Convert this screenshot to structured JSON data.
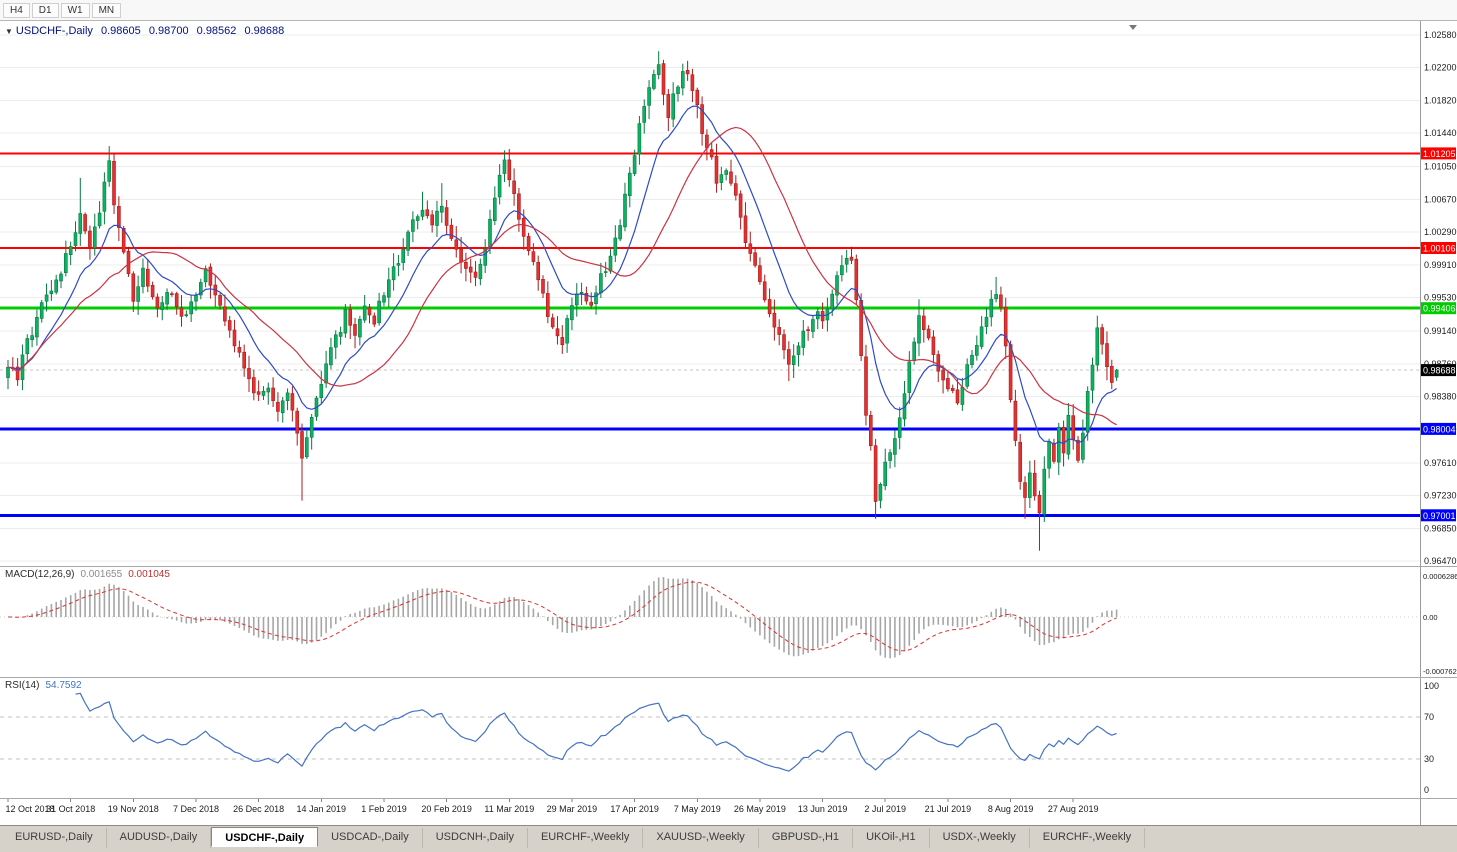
{
  "toolbar": {
    "timeframes": [
      "H4",
      "D1",
      "W1",
      "MN"
    ]
  },
  "chart": {
    "title": {
      "marker": "▼",
      "symbol": "USDCHF-,Daily",
      "open": "0.98605",
      "high": "0.98700",
      "low": "0.98562",
      "close": "0.98688"
    }
  },
  "chart_data": {
    "type": "candlestick",
    "symbol": "USDCHF-",
    "period": "Daily",
    "y_axis_ticks": [
      "1.02580",
      "1.02200",
      "1.01820",
      "1.01440",
      "1.01050",
      "1.00670",
      "1.00290",
      "0.99910",
      "0.99530",
      "0.99140",
      "0.98760",
      "0.98380",
      "0.98000",
      "0.97610",
      "0.97230",
      "0.96850",
      "0.96470"
    ],
    "y_range": [
      0.9647,
      1.0258
    ],
    "x_axis_dates": [
      "12 Oct 2018",
      "31 Oct 2018",
      "19 Nov 2018",
      "7 Dec 2018",
      "26 Dec 2018",
      "14 Jan 2019",
      "1 Feb 2019",
      "20 Feb 2019",
      "11 Mar 2019",
      "29 Mar 2019",
      "17 Apr 2019",
      "7 May 2019",
      "26 May 2019",
      "13 Jun 2019",
      "2 Jul 2019",
      "21 Jul 2019",
      "8 Aug 2019",
      "27 Aug 2019"
    ],
    "candles_per_date_label": 13,
    "num_candles": 231,
    "price_path_waypoints": [
      [
        0,
        0.9872
      ],
      [
        2,
        0.9858
      ],
      [
        4,
        0.99
      ],
      [
        6,
        0.9928
      ],
      [
        8,
        0.9952
      ],
      [
        10,
        0.9972
      ],
      [
        13,
        1.001
      ],
      [
        15,
        1.0048
      ],
      [
        17,
        1.0008
      ],
      [
        19,
        1.0052
      ],
      [
        21,
        1.0108
      ],
      [
        22,
        1.0058
      ],
      [
        24,
        1.0012
      ],
      [
        26,
        0.9948
      ],
      [
        28,
        0.9986
      ],
      [
        31,
        0.9936
      ],
      [
        33,
        0.9962
      ],
      [
        36,
        0.9934
      ],
      [
        39,
        0.9948
      ],
      [
        41,
        0.9982
      ],
      [
        44,
        0.995
      ],
      [
        46,
        0.9912
      ],
      [
        48,
        0.9888
      ],
      [
        50,
        0.9856
      ],
      [
        52,
        0.9836
      ],
      [
        54,
        0.9848
      ],
      [
        56,
        0.9824
      ],
      [
        58,
        0.9836
      ],
      [
        60,
        0.9796
      ],
      [
        61,
        0.9762
      ],
      [
        63,
        0.982
      ],
      [
        65,
        0.9858
      ],
      [
        67,
        0.9896
      ],
      [
        70,
        0.9932
      ],
      [
        72,
        0.9912
      ],
      [
        74,
        0.9944
      ],
      [
        76,
        0.9926
      ],
      [
        78,
        0.9958
      ],
      [
        80,
        0.9988
      ],
      [
        82,
        1.0012
      ],
      [
        84,
        1.0036
      ],
      [
        86,
        1.0056
      ],
      [
        88,
        1.0042
      ],
      [
        90,
        1.0062
      ],
      [
        91,
        1.0032
      ],
      [
        93,
        1.0002
      ],
      [
        95,
        0.9986
      ],
      [
        97,
        0.9976
      ],
      [
        99,
        1.0012
      ],
      [
        101,
        1.0066
      ],
      [
        103,
        1.0116
      ],
      [
        105,
        1.0072
      ],
      [
        107,
        1.0022
      ],
      [
        109,
        0.9992
      ],
      [
        111,
        0.9952
      ],
      [
        113,
        0.9918
      ],
      [
        115,
        0.99
      ],
      [
        117,
        0.9946
      ],
      [
        119,
        0.9962
      ],
      [
        121,
        0.994
      ],
      [
        123,
        0.9976
      ],
      [
        125,
        1.0004
      ],
      [
        127,
        1.0042
      ],
      [
        129,
        1.0095
      ],
      [
        131,
        1.015
      ],
      [
        133,
        1.02
      ],
      [
        135,
        1.0228
      ],
      [
        136,
        1.019
      ],
      [
        137,
        1.016
      ],
      [
        138,
        1.019
      ],
      [
        140,
        1.0215
      ],
      [
        141,
        1.022
      ],
      [
        142,
        1.0195
      ],
      [
        143,
        1.017
      ],
      [
        145,
        1.0126
      ],
      [
        147,
        1.0092
      ],
      [
        149,
        1.0106
      ],
      [
        151,
        1.0066
      ],
      [
        153,
        1.0022
      ],
      [
        155,
        0.9992
      ],
      [
        156,
        0.9964
      ],
      [
        158,
        0.9936
      ],
      [
        160,
        0.9906
      ],
      [
        162,
        0.9882
      ],
      [
        164,
        0.9896
      ],
      [
        166,
        0.9922
      ],
      [
        168,
        0.9936
      ],
      [
        169,
        0.9926
      ],
      [
        171,
        0.9962
      ],
      [
        173,
        0.9986
      ],
      [
        175,
        1.0002
      ],
      [
        176,
        0.9952
      ],
      [
        177,
        0.9892
      ],
      [
        178,
        0.9822
      ],
      [
        179,
        0.9778
      ],
      [
        180,
        0.9716
      ],
      [
        181,
        0.9742
      ],
      [
        183,
        0.9772
      ],
      [
        185,
        0.9816
      ],
      [
        187,
        0.9872
      ],
      [
        189,
        0.9926
      ],
      [
        191,
        0.9902
      ],
      [
        193,
        0.9872
      ],
      [
        195,
        0.9852
      ],
      [
        197,
        0.9832
      ],
      [
        199,
        0.9872
      ],
      [
        201,
        0.9902
      ],
      [
        203,
        0.9936
      ],
      [
        205,
        0.9962
      ],
      [
        206,
        0.9942
      ],
      [
        207,
        0.9892
      ],
      [
        208,
        0.9836
      ],
      [
        209,
        0.9792
      ],
      [
        210,
        0.9742
      ],
      [
        211,
        0.9722
      ],
      [
        212,
        0.9746
      ],
      [
        213,
        0.9726
      ],
      [
        214,
        0.9702
      ],
      [
        215,
        0.9756
      ],
      [
        216,
        0.9782
      ],
      [
        217,
        0.9762
      ],
      [
        218,
        0.9796
      ],
      [
        219,
        0.9776
      ],
      [
        220,
        0.9812
      ],
      [
        221,
        0.9792
      ],
      [
        222,
        0.9758
      ],
      [
        223,
        0.9792
      ],
      [
        224,
        0.9842
      ],
      [
        225,
        0.9882
      ],
      [
        226,
        0.9916
      ],
      [
        227,
        0.9896
      ],
      [
        228,
        0.9872
      ],
      [
        229,
        0.9856
      ],
      [
        230,
        0.98688
      ]
    ],
    "wick_extremes": {
      "15": {
        "high": 1.0092
      },
      "21": {
        "high": 1.0129
      },
      "61": {
        "low": 0.9717
      },
      "86": {
        "high": 1.0076
      },
      "90": {
        "high": 1.0086
      },
      "103": {
        "high": 1.0124
      },
      "135": {
        "high": 1.0239
      },
      "141": {
        "high": 1.0228
      },
      "162": {
        "low": 0.9856
      },
      "175": {
        "high": 1.0012
      },
      "180": {
        "low": 0.9696
      },
      "189": {
        "high": 0.9951
      },
      "205": {
        "high": 0.9977
      },
      "211": {
        "low": 0.9696
      },
      "214": {
        "low": 0.9659
      },
      "226": {
        "high": 0.9932
      }
    },
    "last_candle": {
      "open": 0.98605,
      "high": 0.987,
      "low": 0.98562,
      "close": 0.98688
    },
    "levels": [
      {
        "label": "1.01205",
        "price": 1.01205,
        "color": "#ff0000",
        "line_width": 2
      },
      {
        "label": "1.00106",
        "price": 1.00106,
        "color": "#ff0000",
        "line_width": 2
      },
      {
        "label": "0.99406",
        "price": 0.99406,
        "color": "#00cc00",
        "line_width": 3
      },
      {
        "label": "0.98004",
        "price": 0.98004,
        "color": "#0000ff",
        "line_width": 3
      },
      {
        "label": "0.97001",
        "price": 0.97001,
        "color": "#0000ff",
        "line_width": 3
      }
    ],
    "current_price": {
      "label": "0.98688",
      "price": 0.98688,
      "tag_color": "#000000"
    },
    "moving_averages": [
      {
        "type": "ema",
        "period": 12,
        "color": "#2e4bc6"
      },
      {
        "type": "sma",
        "period": 24,
        "color": "#cc3344"
      }
    ],
    "candle_colors": {
      "bull_fill": "#0cb161",
      "bull_border": "#067a40",
      "bear_fill": "#e53030",
      "bear_border": "#a81d1d"
    }
  },
  "macd_panel": {
    "label": "MACD(12,26,9)",
    "main_value": "0.001655",
    "signal_value": "0.001045",
    "axis_labels": [
      "0.0006286",
      "0.00",
      "-0.0007620"
    ],
    "histogram_color": "#a6a6a6",
    "signal_color": "#e03030",
    "params": {
      "fast": 12,
      "slow": 26,
      "signal": 9
    }
  },
  "rsi_panel": {
    "label": "RSI(14)",
    "value": "54.7592",
    "axis_labels": [
      "100",
      "70",
      "30",
      "0"
    ],
    "levels": [
      70,
      30
    ],
    "line_color": "#4273c4",
    "period": 14
  },
  "tab_bar": {
    "active_index": 2,
    "tabs": [
      "EURUSD-,Daily",
      "AUDUSD-,Daily",
      "USDCHF-,Daily",
      "USDCAD-,Daily",
      "USDCNH-,Daily",
      "EURCHF-,Weekly",
      "XAUUSD-,Weekly",
      "GBPUSD-,H1",
      "UKOil-,H1",
      "USDX-,Weekly",
      "EURCHF-,Weekly"
    ]
  }
}
